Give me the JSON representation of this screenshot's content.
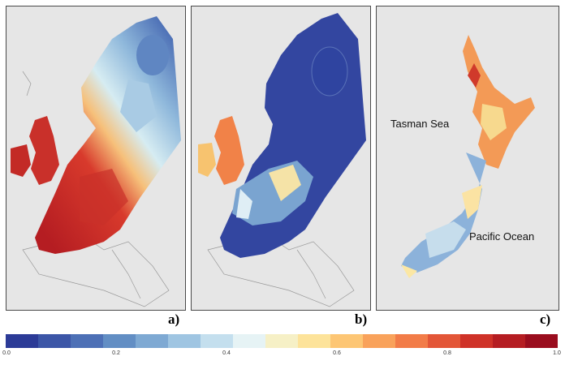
{
  "panels": [
    {
      "label": "a)"
    },
    {
      "label": "b)"
    },
    {
      "label": "c)"
    }
  ],
  "annotations": {
    "tasman": "Tasman Sea",
    "pacific": "Pacific Ocean"
  },
  "colorbar": {
    "min": 0.0,
    "max": 1.0,
    "ticks": [
      "0.0",
      "0.2",
      "0.4",
      "0.6",
      "0.8",
      "1.0"
    ],
    "colors": [
      "#2c3b97",
      "#3c56a7",
      "#4d70b6",
      "#628ec4",
      "#7ea9d3",
      "#9fc5e2",
      "#c4dfee",
      "#e6f3f5",
      "#f6f0c6",
      "#fde39a",
      "#fdc674",
      "#f9a25b",
      "#f27c48",
      "#e35637",
      "#cf3228",
      "#b51d22",
      "#9a0d1e"
    ]
  }
}
